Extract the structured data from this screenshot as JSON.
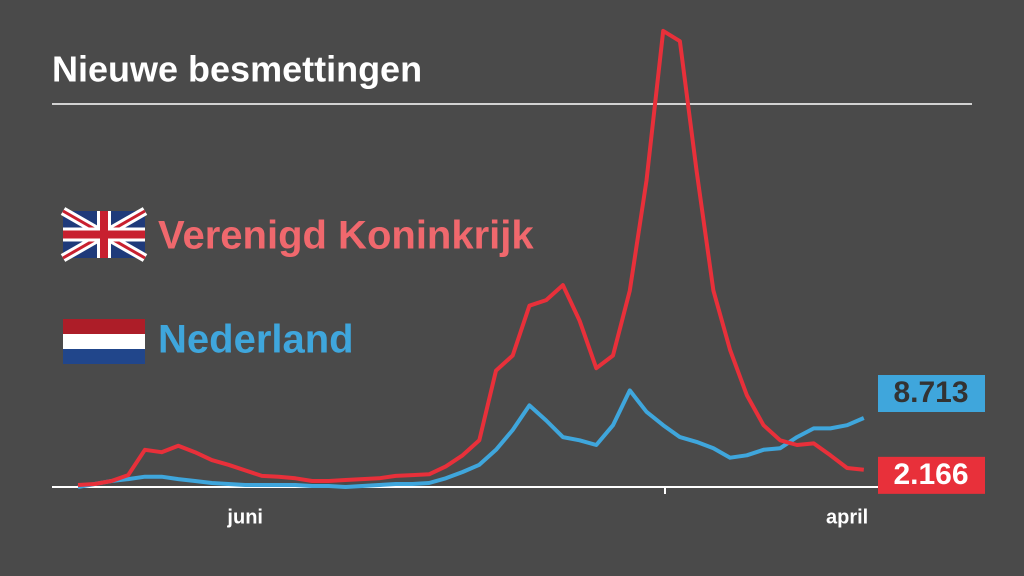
{
  "chart_data": {
    "type": "line",
    "title": "Nieuwe besmettingen",
    "categories": [
      null,
      null,
      null,
      null,
      null,
      null,
      null,
      null,
      null,
      null,
      "juni",
      null,
      null,
      null,
      null,
      null,
      null,
      null,
      null,
      null,
      null,
      null,
      null,
      null,
      null,
      null,
      null,
      null,
      null,
      null,
      null,
      null,
      null,
      null,
      null,
      null,
      null,
      null,
      null,
      null,
      null,
      null,
      null,
      null,
      null,
      null,
      "april",
      null
    ],
    "series": [
      {
        "name": "Verenigd Koninkrijk",
        "color": "#e8303a",
        "values": [
          250,
          380,
          760,
          1500,
          4700,
          4400,
          5200,
          4400,
          3400,
          2800,
          2100,
          1400,
          1300,
          1100,
          760,
          760,
          880,
          1000,
          1100,
          1400,
          1500,
          1600,
          2600,
          4000,
          5900,
          14700,
          16600,
          22900,
          23600,
          25500,
          21000,
          15000,
          16600,
          24800,
          38700,
          57600,
          56300,
          39900,
          24800,
          17300,
          11600,
          7800,
          5900,
          5300,
          5500,
          4000,
          2400,
          2166
        ],
        "value_labels": [
          null,
          null,
          null,
          null,
          null,
          null,
          null,
          null,
          null,
          null,
          null,
          null,
          null,
          null,
          null,
          null,
          null,
          null,
          null,
          null,
          null,
          null,
          null,
          null,
          null,
          null,
          null,
          null,
          null,
          null,
          null,
          null,
          null,
          null,
          null,
          null,
          null,
          null,
          null,
          null,
          null,
          null,
          null,
          null,
          null,
          null,
          null,
          "2.166"
        ]
      },
      {
        "name": "Nederland",
        "color": "#3fa6dc",
        "values": [
          0,
          380,
          760,
          1000,
          1300,
          1300,
          1000,
          760,
          500,
          380,
          250,
          250,
          250,
          250,
          130,
          130,
          0,
          130,
          250,
          380,
          380,
          500,
          1100,
          1900,
          2800,
          4700,
          7200,
          10300,
          8400,
          6300,
          5900,
          5300,
          7800,
          12200,
          9500,
          7800,
          6300,
          5700,
          4900,
          3700,
          4000,
          4700,
          4900,
          6300,
          7400,
          7400,
          7800,
          8713
        ],
        "value_labels": [
          null,
          null,
          null,
          null,
          null,
          null,
          null,
          null,
          null,
          null,
          null,
          null,
          null,
          null,
          null,
          null,
          null,
          null,
          null,
          null,
          null,
          null,
          null,
          null,
          null,
          null,
          null,
          null,
          null,
          null,
          null,
          null,
          null,
          null,
          null,
          null,
          null,
          null,
          null,
          null,
          null,
          null,
          null,
          null,
          null,
          null,
          null,
          "8.713"
        ]
      }
    ],
    "ylim": [
      0,
      61500
    ]
  }
}
